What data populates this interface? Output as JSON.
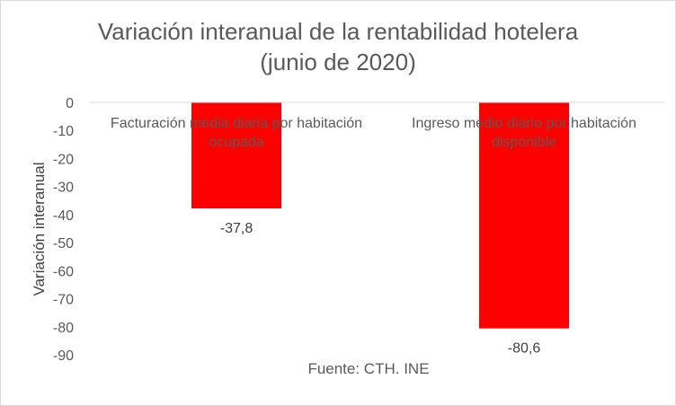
{
  "chart_data": {
    "type": "bar",
    "title": "Variación interanual de la rentabilidad hotelera (junio de 2020)",
    "title_lines": [
      "Variación interanual de la rentabilidad hotelera",
      "(junio de 2020)"
    ],
    "ylabel": "Variación interanual",
    "xlabel": "",
    "source": "Fuente: CTH. INE",
    "categories": [
      "Facturación media diaria por habitación ocupada",
      "Ingreso medio diario por habitación disponible"
    ],
    "category_lines": [
      [
        "Facturación media diaria por habitación",
        "ocupada"
      ],
      [
        "Ingreso medio diario por habitación",
        "disponible"
      ]
    ],
    "values": [
      -37.8,
      -80.6
    ],
    "data_labels": [
      "-37,8",
      "-80,6"
    ],
    "ylim": [
      -90,
      0
    ],
    "yticks": [
      0,
      -10,
      -20,
      -30,
      -40,
      -50,
      -60,
      -70,
      -80,
      -90
    ],
    "grid": false,
    "bar_color": "#ff0000",
    "legend": "none"
  }
}
